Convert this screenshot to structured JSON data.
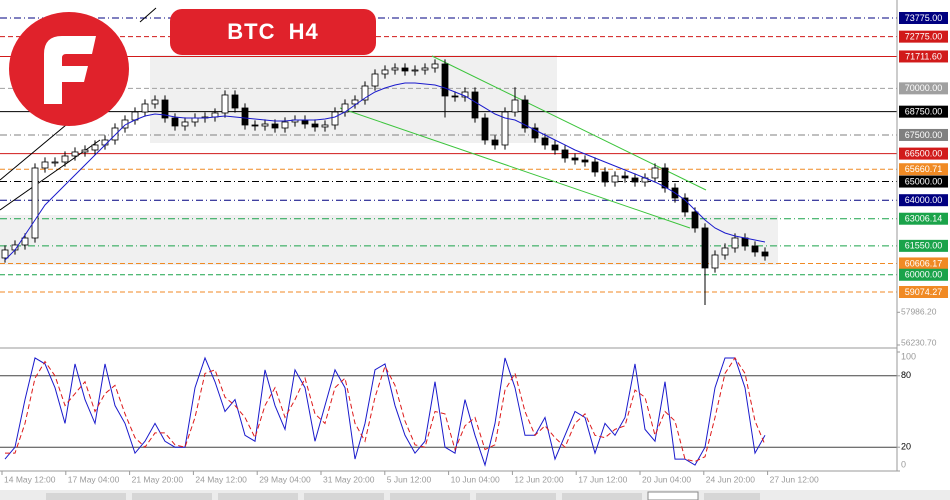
{
  "title": "BTC H4",
  "chart_data": {
    "type": "candlestick",
    "ylim": [
      56230.7,
      74741
    ],
    "yticks": [
      {
        "value": 57986.2,
        "label": "57986.20"
      },
      {
        "value": 56230.7,
        "label": "56230.70"
      }
    ],
    "candles": {
      "open": [
        60900,
        61329,
        61597,
        61972,
        65728,
        66050,
        66050,
        66372,
        66587,
        66694,
        66962,
        67230,
        67874,
        68303,
        68732,
        69162,
        69376,
        68410,
        67982,
        68196,
        68410,
        68464,
        68679,
        69645,
        68947,
        68035,
        67981,
        68088,
        67874,
        68196,
        68303,
        68088,
        67928,
        68035,
        68732,
        69162,
        69376,
        70127,
        70771,
        70986,
        71093,
        70932,
        70986,
        71093,
        71308,
        69591,
        69537,
        69805,
        68410,
        67230,
        66962,
        68732,
        69376,
        67874,
        67338,
        66962,
        66694,
        66264,
        66157,
        66050,
        65514,
        64977,
        65299,
        65192,
        64977,
        65192,
        65728,
        64655,
        64118,
        63367,
        62509,
        60363,
        61060,
        61436,
        61972,
        61543,
        61221
      ],
      "high": [
        61579,
        61847,
        62222,
        65978,
        66300,
        66300,
        66622,
        66837,
        66944,
        67212,
        67480,
        68124,
        68553,
        68982,
        69412,
        69626,
        69626,
        68660,
        68446,
        68660,
        68714,
        68929,
        69895,
        69895,
        69197,
        68285,
        68338,
        68338,
        68446,
        68553,
        68553,
        68338,
        68285,
        68982,
        69412,
        69626,
        70377,
        71021,
        71236,
        71343,
        71343,
        71236,
        71343,
        71558,
        71558,
        69841,
        70055,
        70055,
        68660,
        67480,
        68982,
        70060,
        69626,
        68124,
        67588,
        67212,
        66944,
        66514,
        66407,
        66300,
        65764,
        65549,
        65549,
        65442,
        65442,
        65978,
        65978,
        64905,
        64368,
        63617,
        62759,
        61310,
        61686,
        62222,
        62222,
        61793,
        61471
      ],
      "low": [
        60650,
        61079,
        61347,
        61722,
        65478,
        65800,
        65800,
        66122,
        66337,
        66444,
        66712,
        66980,
        67624,
        68053,
        68482,
        68912,
        68160,
        67732,
        67732,
        67946,
        68160,
        68214,
        68429,
        68697,
        67785,
        67731,
        67731,
        67624,
        67624,
        67946,
        67838,
        67678,
        67678,
        67785,
        68482,
        68912,
        69126,
        69877,
        70521,
        70736,
        70682,
        70682,
        70736,
        70843,
        68440,
        69287,
        69287,
        68160,
        66980,
        66712,
        66712,
        68482,
        67624,
        67088,
        66712,
        66444,
        66014,
        65907,
        65800,
        65264,
        64727,
        64727,
        64942,
        64727,
        64727,
        64942,
        64405,
        63868,
        63117,
        62259,
        58380,
        60113,
        60810,
        61186,
        61293,
        60971,
        60756
      ],
      "close": [
        61329,
        61597,
        61972,
        65728,
        66050,
        66050,
        66372,
        66587,
        66694,
        66962,
        67230,
        67874,
        68303,
        68732,
        69162,
        69376,
        68410,
        67982,
        68196,
        68410,
        68464,
        68679,
        69645,
        68947,
        68035,
        67981,
        68088,
        67874,
        68196,
        68303,
        68088,
        67928,
        68035,
        68732,
        69162,
        69376,
        70127,
        70771,
        70986,
        71093,
        70932,
        70986,
        71093,
        71308,
        69591,
        69537,
        69805,
        68410,
        67230,
        66962,
        68732,
        69376,
        67874,
        67338,
        66962,
        66694,
        66264,
        66157,
        66050,
        65514,
        64977,
        65299,
        65192,
        64977,
        65192,
        65728,
        64655,
        64118,
        63367,
        62509,
        60363,
        61060,
        61436,
        61972,
        61543,
        61221,
        61006
      ]
    },
    "ma": {
      "color": "#1a1acc",
      "values": [
        60792,
        61329,
        62134,
        62938,
        63743,
        64279,
        64816,
        65352,
        65889,
        66425,
        66962,
        67498,
        68035,
        68303,
        68518,
        68624,
        68571,
        68464,
        68410,
        68410,
        68410,
        68464,
        68518,
        68464,
        68410,
        68357,
        68303,
        68249,
        68249,
        68303,
        68303,
        68303,
        68357,
        68464,
        68732,
        69108,
        69483,
        69805,
        70020,
        70181,
        70288,
        70288,
        70234,
        70181,
        70020,
        69805,
        69591,
        69269,
        68947,
        68624,
        68410,
        68303,
        68035,
        67766,
        67498,
        67230,
        66962,
        66694,
        66479,
        66264,
        66050,
        65835,
        65620,
        65406,
        65192,
        64977,
        64709,
        64387,
        64011,
        63475,
        62938,
        62509,
        62241,
        62080,
        61972,
        61865,
        61758
      ]
    },
    "levels": [
      {
        "value": 73775,
        "label": "73775.00",
        "color": "#000080",
        "dash": "dashdot"
      },
      {
        "value": 72775,
        "label": "72775.00",
        "color": "#d11a1a",
        "dash": "dash"
      },
      {
        "value": 71711.6,
        "label": "71711.60",
        "color": "#d11a1a",
        "dash": "solid"
      },
      {
        "value": 70000,
        "label": "70000.00",
        "color": "#a0a0a0",
        "dash": "dash"
      },
      {
        "value": 68750,
        "label": "68750.00",
        "color": "#000000",
        "dash": "solid"
      },
      {
        "value": 67500,
        "label": "67500.00",
        "color": "#808080",
        "dash": "dashdot"
      },
      {
        "value": 66500,
        "label": "66500.00",
        "color": "#d11a1a",
        "dash": "solid"
      },
      {
        "value": 65660.71,
        "label": "65660.71",
        "color": "#f08a24",
        "dash": "dash"
      },
      {
        "value": 65000,
        "label": "65000.00",
        "color": "#000000",
        "dash": "dashdot"
      },
      {
        "value": 64000,
        "label": "64000.00",
        "color": "#000080",
        "dash": "dashdot"
      },
      {
        "value": 63006.14,
        "label": "63006.14",
        "color": "#1aa34a",
        "dash": "dashdot"
      },
      {
        "value": 61550,
        "label": "61550.00",
        "color": "#1aa34a",
        "dash": "dashdot"
      },
      {
        "value": 60606.17,
        "label": "60606.17",
        "color": "#f08a24",
        "dash": "dash"
      },
      {
        "value": 60000,
        "label": "60000.00",
        "color": "#1aa34a",
        "dash": "dash"
      },
      {
        "value": 59074.27,
        "label": "59074.27",
        "color": "#f08a24",
        "dash": "dash"
      }
    ],
    "x_labels": [
      "14 May 12:00",
      "17 May 04:00",
      "21 May 20:00",
      "24 May 12:00",
      "29 May 04:00",
      "31 May 20:00",
      "5 Jun 12:00",
      "10 Jun 04:00",
      "12 Jun 20:00",
      "17 Jun 12:00",
      "20 Jun 04:00",
      "24 Jun 20:00",
      "27 Jun 12:00"
    ],
    "stochastic": {
      "ylim": [
        0,
        100
      ],
      "yticks": [
        0,
        20,
        80,
        100
      ],
      "levels": [
        20,
        80
      ],
      "series": [
        {
          "color": "#1a1acc",
          "values": [
            10,
            20,
            60,
            95,
            90,
            70,
            40,
            90,
            60,
            40,
            90,
            55,
            40,
            15,
            25,
            40,
            25,
            20,
            20,
            70,
            95,
            75,
            50,
            60,
            30,
            25,
            85,
            55,
            35,
            85,
            70,
            25,
            55,
            85,
            70,
            10,
            40,
            85,
            90,
            55,
            30,
            15,
            25,
            75,
            20,
            15,
            60,
            30,
            5,
            40,
            95,
            70,
            30,
            30,
            45,
            10,
            30,
            50,
            45,
            15,
            40,
            30,
            45,
            90,
            35,
            25,
            75,
            10,
            10,
            5,
            20,
            70,
            95,
            95,
            70,
            15,
            30
          ]
        },
        {
          "color": "#dd1a1a",
          "dash": "dash",
          "values": [
            15,
            15,
            40,
            78,
            92,
            80,
            55,
            65,
            75,
            50,
            65,
            72,
            48,
            28,
            20,
            32,
            32,
            22,
            20,
            45,
            82,
            85,
            62,
            55,
            45,
            28,
            55,
            70,
            45,
            60,
            78,
            48,
            40,
            70,
            78,
            40,
            25,
            62,
            88,
            72,
            42,
            22,
            20,
            50,
            48,
            18,
            38,
            45,
            18,
            22,
            68,
            82,
            50,
            30,
            38,
            28,
            20,
            40,
            48,
            30,
            28,
            35,
            38,
            68,
            62,
            30,
            50,
            42,
            10,
            8,
            12,
            45,
            82,
            95,
            82,
            42,
            22
          ]
        }
      ]
    }
  }
}
